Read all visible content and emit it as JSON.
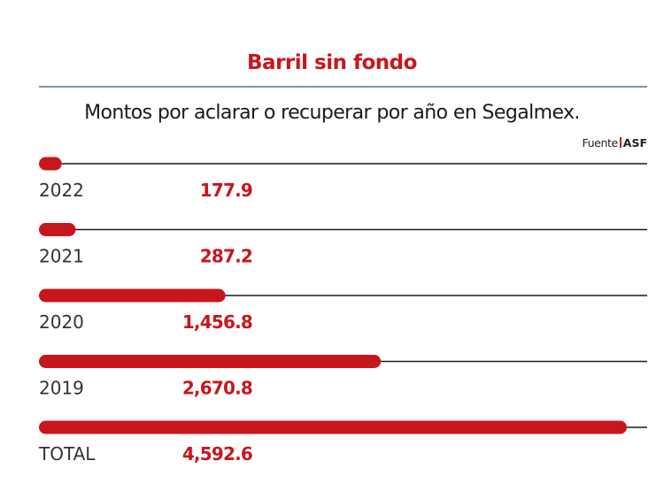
{
  "header": {
    "title": "Barril sin fondo",
    "subtitle": "Montos por aclarar o recuperar por año en Segalmex.",
    "source_label": "Fuente",
    "source_value": "ASF"
  },
  "chart_data": {
    "type": "bar",
    "orientation": "horizontal",
    "categories": [
      "2022",
      "2021",
      "2020",
      "2019",
      "TOTAL"
    ],
    "values": [
      177.9,
      287.2,
      1456.8,
      2670.8,
      4592.6
    ],
    "value_labels": [
      "177.9",
      "287.2",
      "1,456.8",
      "2,670.8",
      "4,592.6"
    ],
    "title": "Barril sin fondo",
    "subtitle": "Montos por aclarar o recuperar por año en Segalmex.",
    "xlim": [
      0,
      4592.6
    ],
    "grid": false,
    "legend": "none",
    "bar_color": "#c8161d",
    "value_color": "#c8161d",
    "rule_color": "#1a1a1a"
  }
}
